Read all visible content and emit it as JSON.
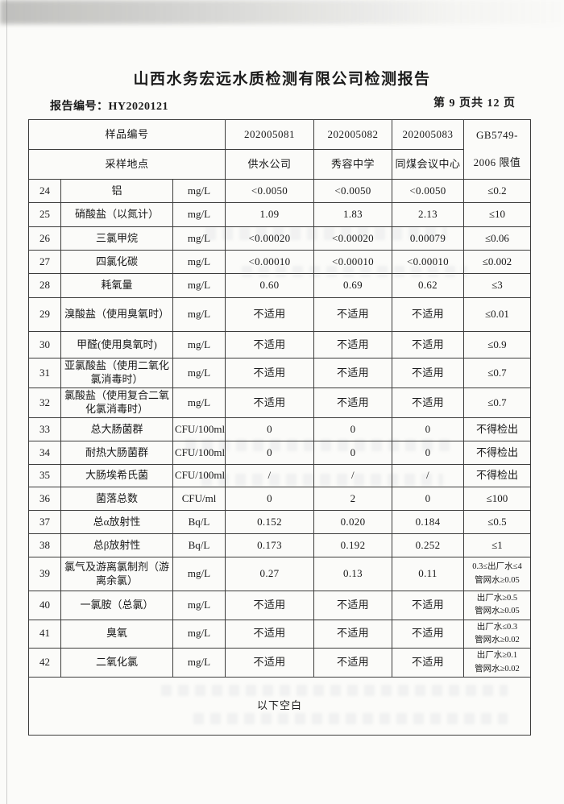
{
  "page": {
    "title": "山西水务宏远水质检测有限公司检测报告",
    "report_no_label": "报告编号：HY2020121",
    "page_indicator": "第 9 页共 12 页"
  },
  "table": {
    "header": {
      "sample_id_label": "样品编号",
      "location_label": "采样地点",
      "sample_ids": [
        "202005081",
        "202005082",
        "202005083"
      ],
      "locations": [
        "供水公司",
        "秀容中学",
        "同煤会议中心"
      ],
      "limit_line1": "GB5749-",
      "limit_line2": "2006 限值"
    },
    "rows": [
      {
        "no": "24",
        "name": "铝",
        "unit": "mg/L",
        "v1": "<0.0050",
        "v2": "<0.0050",
        "v3": "<0.0050",
        "limit": "≤0.2",
        "limit2": ""
      },
      {
        "no": "25",
        "name": "硝酸盐（以氮计）",
        "unit": "mg/L",
        "v1": "1.09",
        "v2": "1.83",
        "v3": "2.13",
        "limit": "≤10",
        "limit2": ""
      },
      {
        "no": "26",
        "name": "三氯甲烷",
        "unit": "mg/L",
        "v1": "<0.00020",
        "v2": "<0.00020",
        "v3": "0.00079",
        "limit": "≤0.06",
        "limit2": ""
      },
      {
        "no": "27",
        "name": "四氯化碳",
        "unit": "mg/L",
        "v1": "<0.00010",
        "v2": "<0.00010",
        "v3": "<0.00010",
        "limit": "≤0.002",
        "limit2": ""
      },
      {
        "no": "28",
        "name": "耗氧量",
        "unit": "mg/L",
        "v1": "0.60",
        "v2": "0.69",
        "v3": "0.62",
        "limit": "≤3",
        "limit2": ""
      },
      {
        "no": "29",
        "name": "溴酸盐（使用臭氧时）",
        "unit": "mg/L",
        "v1": "不适用",
        "v2": "不适用",
        "v3": "不适用",
        "limit": "≤0.01",
        "limit2": ""
      },
      {
        "no": "30",
        "name": "甲醛(使用臭氧时)",
        "unit": "mg/L",
        "v1": "不适用",
        "v2": "不适用",
        "v3": "不适用",
        "limit": "≤0.9",
        "limit2": ""
      },
      {
        "no": "31",
        "name": "亚氯酸盐（使用二氧化氯消毒时）",
        "unit": "mg/L",
        "v1": "不适用",
        "v2": "不适用",
        "v3": "不适用",
        "limit": "≤0.7",
        "limit2": ""
      },
      {
        "no": "32",
        "name": "氯酸盐（使用复合二氧化氯消毒时）",
        "unit": "mg/L",
        "v1": "不适用",
        "v2": "不适用",
        "v3": "不适用",
        "limit": "≤0.7",
        "limit2": ""
      },
      {
        "no": "33",
        "name": "总大肠菌群",
        "unit": "CFU/100ml",
        "v1": "0",
        "v2": "0",
        "v3": "0",
        "limit": "不得检出",
        "limit2": ""
      },
      {
        "no": "34",
        "name": "耐热大肠菌群",
        "unit": "CFU/100ml",
        "v1": "0",
        "v2": "0",
        "v3": "0",
        "limit": "不得检出",
        "limit2": ""
      },
      {
        "no": "35",
        "name": "大肠埃希氏菌",
        "unit": "CFU/100ml",
        "v1": "/",
        "v2": "/",
        "v3": "/",
        "limit": "不得检出",
        "limit2": ""
      },
      {
        "no": "36",
        "name": "菌落总数",
        "unit": "CFU/ml",
        "v1": "0",
        "v2": "2",
        "v3": "0",
        "limit": "≤100",
        "limit2": ""
      },
      {
        "no": "37",
        "name": "总α放射性",
        "unit": "Bq/L",
        "v1": "0.152",
        "v2": "0.020",
        "v3": "0.184",
        "limit": "≤0.5",
        "limit2": ""
      },
      {
        "no": "38",
        "name": "总β放射性",
        "unit": "Bq/L",
        "v1": "0.173",
        "v2": "0.192",
        "v3": "0.252",
        "limit": "≤1",
        "limit2": ""
      },
      {
        "no": "39",
        "name": "氯气及游离氯制剂（游离余氯）",
        "unit": "mg/L",
        "v1": "0.27",
        "v2": "0.13",
        "v3": "0.11",
        "limit": "0.3≤出厂水≤4",
        "limit2": "管网水≥0.05"
      },
      {
        "no": "40",
        "name": "一氯胺（总氯）",
        "unit": "mg/L",
        "v1": "不适用",
        "v2": "不适用",
        "v3": "不适用",
        "limit": "出厂水≥0.5",
        "limit2": "管网水≥0.05"
      },
      {
        "no": "41",
        "name": "臭氧",
        "unit": "mg/L",
        "v1": "不适用",
        "v2": "不适用",
        "v3": "不适用",
        "limit": "出厂水≤0.3",
        "limit2": "管网水≥0.02"
      },
      {
        "no": "42",
        "name": "二氧化氯",
        "unit": "mg/L",
        "v1": "不适用",
        "v2": "不适用",
        "v3": "不适用",
        "limit": "出厂水≥0.1",
        "limit2": "管网水≥0.02"
      }
    ],
    "footer_note": "以下空白"
  }
}
